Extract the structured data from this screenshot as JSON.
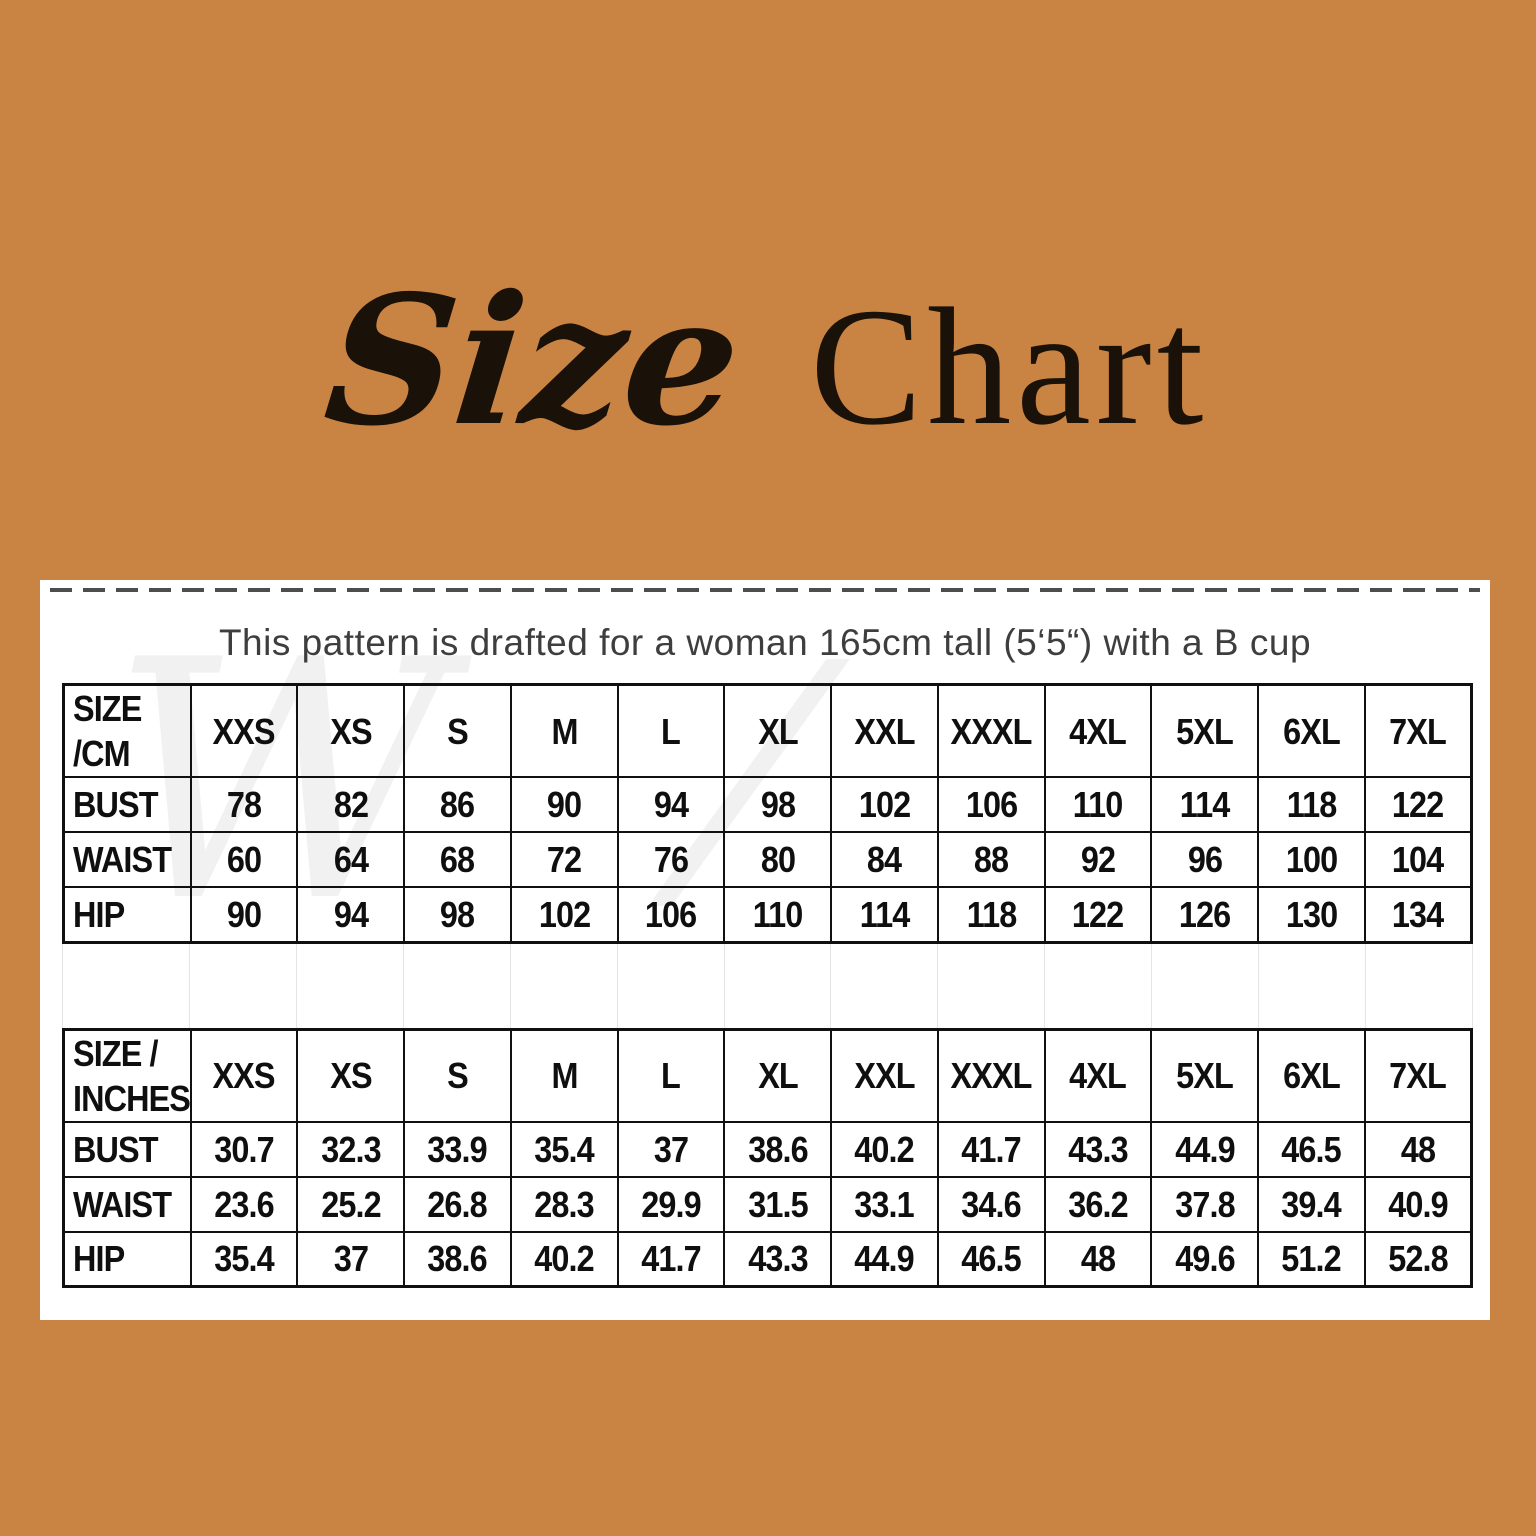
{
  "colors": {
    "background": "#c98443",
    "title_ink": "#1a1108",
    "table_ink": "#0f0f0f",
    "subtitle_ink": "#3e3e3e"
  },
  "title": {
    "script_word": "Size",
    "serif_word": "Chart"
  },
  "panel": {
    "subtitle": "This pattern is drafted for a woman 165cm tall (5‘5“) with a B cup"
  },
  "watermark": {
    "glyph_left": "W",
    "glyph_mid": "/"
  },
  "chart_data": [
    {
      "type": "table",
      "title": "SIZE /CM",
      "columns": [
        "SIZE /CM",
        "XXS",
        "XS",
        "S",
        "M",
        "L",
        "XL",
        "XXL",
        "XXXL",
        "4XL",
        "5XL",
        "6XL",
        "7XL"
      ],
      "rows": [
        {
          "label": "BUST",
          "values": [
            "78",
            "82",
            "86",
            "90",
            "94",
            "98",
            "102",
            "106",
            "110",
            "114",
            "118",
            "122"
          ]
        },
        {
          "label": "WAIST",
          "values": [
            "60",
            "64",
            "68",
            "72",
            "76",
            "80",
            "84",
            "88",
            "92",
            "96",
            "100",
            "104"
          ]
        },
        {
          "label": "HIP",
          "values": [
            "90",
            "94",
            "98",
            "102",
            "106",
            "110",
            "114",
            "118",
            "122",
            "126",
            "130",
            "134"
          ]
        }
      ]
    },
    {
      "type": "table",
      "title": "SIZE / INCHES",
      "columns": [
        "SIZE /\nINCHES",
        "XXS",
        "XS",
        "S",
        "M",
        "L",
        "XL",
        "XXL",
        "XXXL",
        "4XL",
        "5XL",
        "6XL",
        "7XL"
      ],
      "rows": [
        {
          "label": "BUST",
          "values": [
            "30.7",
            "32.3",
            "33.9",
            "35.4",
            "37",
            "38.6",
            "40.2",
            "41.7",
            "43.3",
            "44.9",
            "46.5",
            "48"
          ]
        },
        {
          "label": "WAIST",
          "values": [
            "23.6",
            "25.2",
            "26.8",
            "28.3",
            "29.9",
            "31.5",
            "33.1",
            "34.6",
            "36.2",
            "37.8",
            "39.4",
            "40.9"
          ]
        },
        {
          "label": "HIP",
          "values": [
            "35.4",
            "37",
            "38.6",
            "40.2",
            "41.7",
            "43.3",
            "44.9",
            "46.5",
            "48",
            "49.6",
            "51.2",
            "52.8"
          ]
        }
      ]
    }
  ]
}
